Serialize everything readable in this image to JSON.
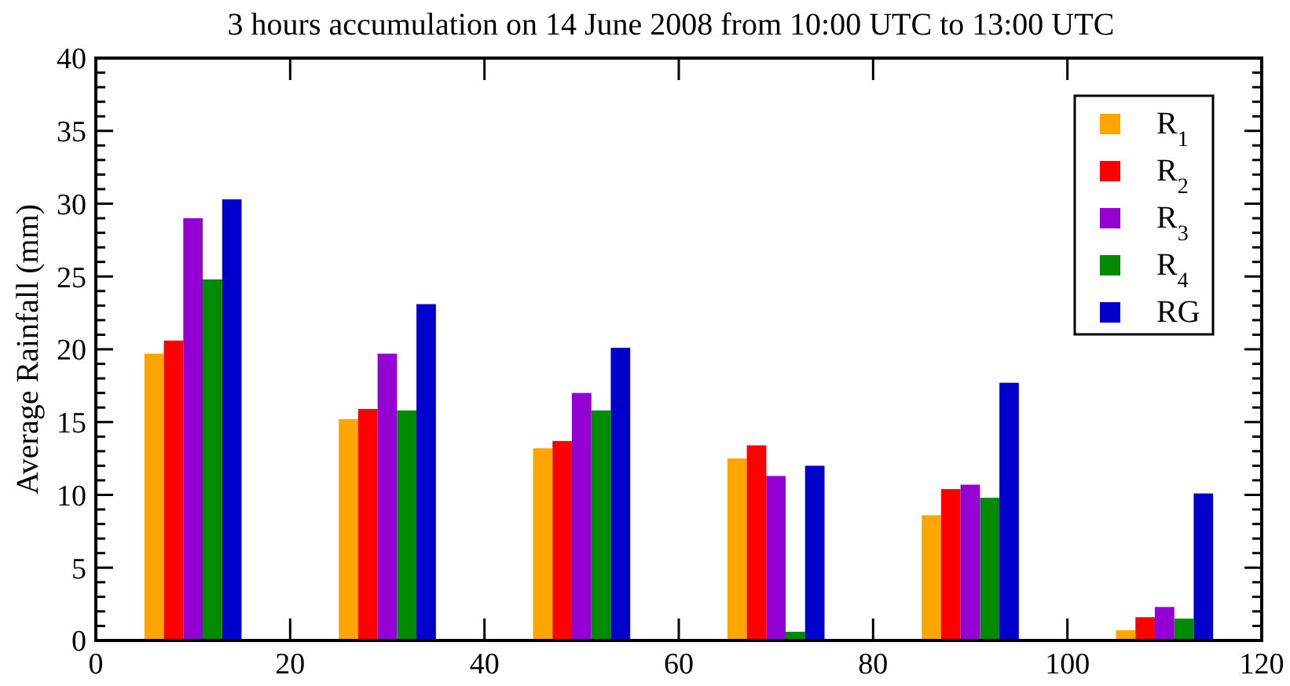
{
  "chart_data": {
    "type": "bar",
    "title": "3 hours accumulation on 14 June 2008 from 10:00 UTC to 13:00 UTC",
    "ylabel": "Average Rainfall (mm)",
    "series": [
      {
        "name": "R$_{1}$",
        "color": "#ffa500",
        "x": [
          6,
          26,
          46,
          66,
          86,
          106
        ],
        "values": [
          19.7,
          15.2,
          13.2,
          12.5,
          8.6,
          0.7
        ]
      },
      {
        "name": "R$_{2}$",
        "color": "#ff0000",
        "x": [
          8,
          28,
          48,
          68,
          88,
          108
        ],
        "values": [
          20.6,
          15.9,
          13.7,
          13.4,
          10.4,
          1.6
        ]
      },
      {
        "name": "R$_{3}$",
        "color": "#9400d3",
        "x": [
          10,
          30,
          50,
          70,
          90,
          110
        ],
        "values": [
          29.0,
          19.7,
          17.0,
          11.3,
          10.7,
          2.3
        ]
      },
      {
        "name": "R$_{4}$",
        "color": "#008b00",
        "x": [
          12,
          32,
          52,
          72,
          92,
          112
        ],
        "values": [
          24.8,
          15.8,
          15.8,
          0.6,
          9.8,
          1.5
        ]
      },
      {
        "name": "RG",
        "color": "#0000cc",
        "x": [
          14,
          34,
          54,
          74,
          94,
          114
        ],
        "values": [
          30.3,
          23.1,
          20.1,
          12.0,
          17.7,
          10.1
        ]
      }
    ],
    "xlim": [
      0,
      120
    ],
    "xticks": [
      0,
      20,
      40,
      60,
      80,
      100,
      120
    ],
    "ylim": [
      0,
      40
    ],
    "yticks": [
      0,
      {
        "value": 1,
        "label": null
      },
      {
        "value": 2,
        "label": null
      },
      {
        "value": 3,
        "label": null
      },
      {
        "value": 4,
        "label": null
      },
      5,
      {
        "value": 6,
        "label": null
      },
      {
        "value": 7,
        "label": null
      },
      {
        "value": 8,
        "label": null
      },
      {
        "value": 9,
        "label": null
      },
      10,
      {
        "value": 11,
        "label": null
      },
      {
        "value": 12,
        "label": null
      },
      {
        "value": 13,
        "label": null
      },
      {
        "value": 14,
        "label": null
      },
      15,
      {
        "value": 16,
        "label": null
      },
      {
        "value": 17,
        "label": null
      },
      {
        "value": 18,
        "label": null
      },
      {
        "value": 19,
        "label": null
      },
      20,
      {
        "value": 21,
        "label": null
      },
      {
        "value": 22,
        "label": null
      },
      {
        "value": 23,
        "label": null
      },
      {
        "value": 24,
        "label": null
      },
      25,
      {
        "value": 26,
        "label": null
      },
      {
        "value": 27,
        "label": null
      },
      {
        "value": 28,
        "label": null
      },
      {
        "value": 29,
        "label": null
      },
      30,
      {
        "value": 31,
        "label": null
      },
      {
        "value": 32,
        "label": null
      },
      {
        "value": 33,
        "label": null
      },
      {
        "value": 34,
        "label": null
      },
      35,
      {
        "value": 36,
        "label": null
      },
      {
        "value": 37,
        "label": null
      },
      {
        "value": 38,
        "label": null
      },
      {
        "value": 39,
        "label": null
      },
      40
    ],
    "legend": "top right"
  }
}
